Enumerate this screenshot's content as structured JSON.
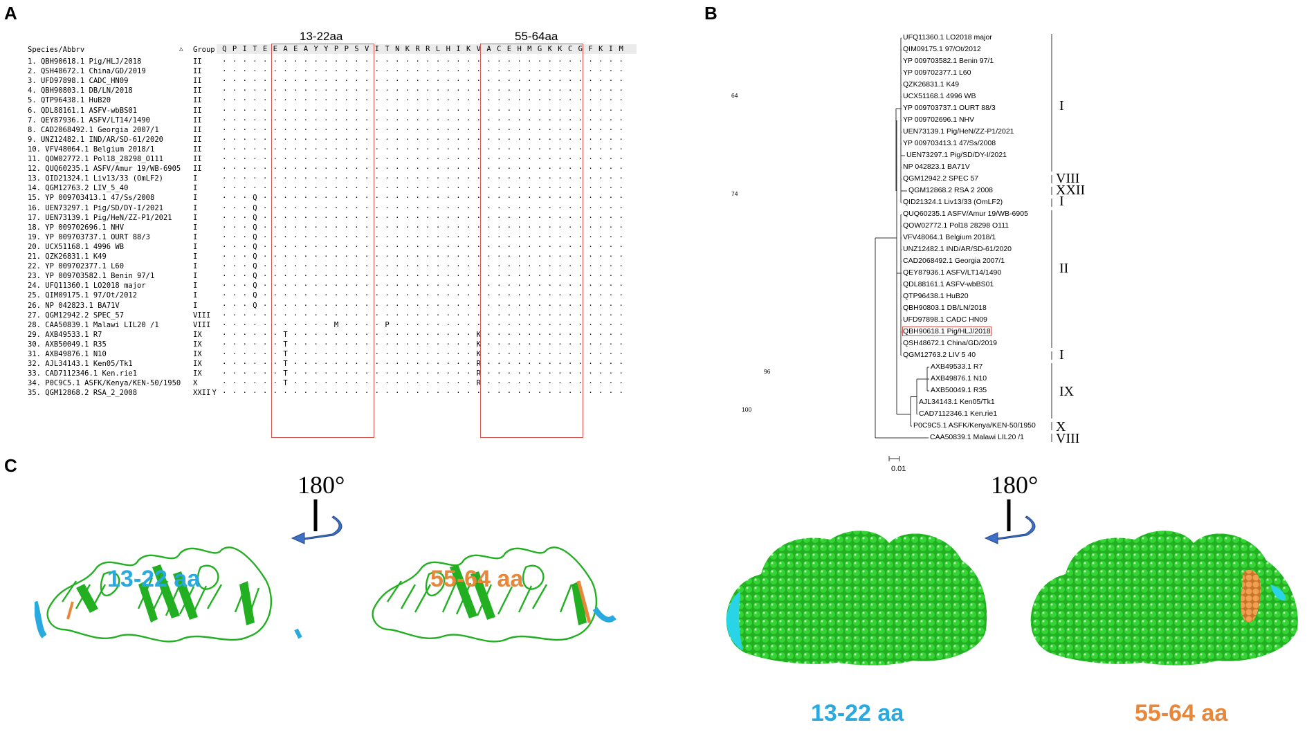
{
  "panels": {
    "a": "A",
    "b": "B",
    "c": "C"
  },
  "alignment": {
    "header_species": "Species/Abbrv",
    "header_sort": "△",
    "header_group": "Group",
    "region1_label": "13-22aa",
    "region2_label": "55-64aa",
    "residues": [
      "Q",
      "P",
      "I",
      "T",
      "E",
      "E",
      "A",
      "E",
      "A",
      "Y",
      "Y",
      "P",
      "P",
      "S",
      "V",
      "I",
      "T",
      "N",
      "K",
      "R",
      "R",
      "L",
      "H",
      "I",
      "K",
      "V",
      "A",
      "C",
      "E",
      "H",
      "M",
      "G",
      "K",
      "K",
      "C",
      "G",
      "F",
      "K",
      "I",
      "M"
    ],
    "rows": [
      {
        "label": "1. QBH90618.1 Pig/HLJ/2018",
        "group": "II",
        "muts": {}
      },
      {
        "label": "2. QSH48672.1 China/GD/2019",
        "group": "II",
        "muts": {}
      },
      {
        "label": "3. UFD97898.1 CADC_HN09",
        "group": "II",
        "muts": {}
      },
      {
        "label": "4. QBH90803.1 DB/LN/2018",
        "group": "II",
        "muts": {}
      },
      {
        "label": "5. QTP96438.1 HuB20",
        "group": "II",
        "muts": {}
      },
      {
        "label": "6. QDL88161.1 ASFV-wbBS01",
        "group": "II",
        "muts": {}
      },
      {
        "label": "7. QEY87936.1 ASFV/LT14/1490",
        "group": "II",
        "muts": {}
      },
      {
        "label": "8. CAD2068492.1 Georgia 2007/1",
        "group": "II",
        "muts": {}
      },
      {
        "label": "9. UNZ12482.1 IND/AR/SD-61/2020",
        "group": "II",
        "muts": {}
      },
      {
        "label": "10. VFV48064.1 Belgium 2018/1",
        "group": "II",
        "muts": {}
      },
      {
        "label": "11. QOW02772.1 Pol18_28298_O111",
        "group": "II",
        "muts": {}
      },
      {
        "label": "12. QUQ60235.1 ASFV/Amur 19/WB-6905",
        "group": "II",
        "muts": {}
      },
      {
        "label": "13. QID21324.1 Liv13/33 (OmLF2)",
        "group": "I",
        "muts": {}
      },
      {
        "label": "14. QGM12763.2 LIV_5_40",
        "group": "I",
        "muts": {}
      },
      {
        "label": "15. YP 009703413.1 47/Ss/2008",
        "group": "I",
        "muts": {
          "3": "Q"
        }
      },
      {
        "label": "16. UEN73297.1 Pig/SD/DY-I/2021",
        "group": "I",
        "muts": {
          "3": "Q"
        }
      },
      {
        "label": "17. UEN73139.1 Pig/HeN/ZZ-P1/2021",
        "group": "I",
        "muts": {
          "3": "Q"
        }
      },
      {
        "label": "18. YP 009702696.1 NHV",
        "group": "I",
        "muts": {
          "3": "Q"
        }
      },
      {
        "label": "19. YP 009703737.1 OURT 88/3",
        "group": "I",
        "muts": {
          "3": "Q"
        }
      },
      {
        "label": "20. UCX51168.1 4996 WB",
        "group": "I",
        "muts": {
          "3": "Q"
        }
      },
      {
        "label": "21. QZK26831.1 K49",
        "group": "I",
        "muts": {
          "3": "Q"
        }
      },
      {
        "label": "22. YP 009702377.1 L60",
        "group": "I",
        "muts": {
          "3": "Q"
        }
      },
      {
        "label": "23. YP 009703582.1 Benin 97/1",
        "group": "I",
        "muts": {
          "3": "Q"
        }
      },
      {
        "label": "24. UFQ11360.1 LO2018 major",
        "group": "I",
        "muts": {
          "3": "Q"
        }
      },
      {
        "label": "25. QIM09175.1 97/Ot/2012",
        "group": "I",
        "muts": {
          "3": "Q"
        }
      },
      {
        "label": "26. NP 042823.1 BA71V",
        "group": "I",
        "muts": {
          "3": "Q"
        }
      },
      {
        "label": "27. QGM12942.2 SPEC_57",
        "group": "VIII",
        "muts": {}
      },
      {
        "label": "28. CAA50839.1 Malawi LIL20 /1",
        "group": "VIII",
        "muts": {
          "11": "M",
          "16": "P"
        }
      },
      {
        "label": "29. AXB49533.1 R7",
        "group": "IX",
        "muts": {
          "6": "T",
          "25": "K"
        }
      },
      {
        "label": "30. AXB50049.1 R35",
        "group": "IX",
        "muts": {
          "6": "T",
          "25": "K"
        }
      },
      {
        "label": "31. AXB49876.1 N10",
        "group": "IX",
        "muts": {
          "6": "T",
          "25": "K"
        }
      },
      {
        "label": "32. AJL34143.1 Ken05/Tk1",
        "group": "IX",
        "muts": {
          "6": "T",
          "25": "R"
        }
      },
      {
        "label": "33. CAD7112346.1 Ken.rie1",
        "group": "IX",
        "muts": {
          "6": "T",
          "25": "R"
        }
      },
      {
        "label": "34. P0C9C5.1 ASFK/Kenya/KEN-50/1950",
        "group": "X",
        "muts": {
          "6": "T",
          "25": "R"
        }
      },
      {
        "label": "35. QGM12868.2 RSA_2_2008",
        "group": "XXII",
        "muts": {
          "-1": "Y"
        }
      }
    ]
  },
  "tree": {
    "leaves": [
      "UFQ11360.1 LO2018 major",
      "QIM09175.1 97/Ot/2012",
      "YP 009703582.1 Benin 97/1",
      "YP 009702377.1 L60",
      "QZK26831.1 K49",
      "UCX51168.1 4996 WB",
      "YP 009703737.1 OURT 88/3",
      "YP 009702696.1 NHV",
      "UEN73139.1 Pig/HeN/ZZ-P1/2021",
      "YP 009703413.1 47/Ss/2008",
      "UEN73297.1 Pig/SD/DY-I/2021",
      "NP 042823.1 BA71V",
      "QGM12942.2 SPEC 57",
      "QGM12868.2 RSA 2 2008",
      "QID21324.1 Liv13/33 (OmLF2)",
      "QUQ60235.1 ASFV/Amur 19/WB-6905",
      "QOW02772.1 Pol18 28298 O111",
      "VFV48064.1 Belgium 2018/1",
      "UNZ12482.1 IND/AR/SD-61/2020",
      "CAD2068492.1 Georgia 2007/1",
      "QEY87936.1 ASFV/LT14/1490",
      "QDL88161.1 ASFV-wbBS01",
      "QTP96438.1 HuB20",
      "QBH90803.1 DB/LN/2018",
      "UFD97898.1 CADC HN09",
      "QBH90618.1 Pig/HLJ/2018",
      "QSH48672.1 China/GD/2019",
      "QGM12763.2 LIV 5 40",
      "AXB49533.1 R7",
      "AXB49876.1 N10",
      "AXB50049.1 R35",
      "AJL34143.1 Ken05/Tk1",
      "CAD7112346.1 Ken.rie1",
      "P0C9C5.1 ASFK/Kenya/KEN-50/1950",
      "CAA50839.1 Malawi LIL20 /1"
    ],
    "clades": {
      "I_top": "I",
      "VIII": "VIII",
      "XXII": "XXII",
      "I_mid": "I",
      "II": "II",
      "I_low": "I",
      "IX": "IX",
      "X": "X",
      "VIII_low": "VIII"
    },
    "bootstrap": {
      "b64": "64",
      "b74": "74",
      "b96": "96",
      "b100": "100"
    },
    "scale": "0.01"
  },
  "structure": {
    "rotation": "180°",
    "label_left_1": "13-22 aa",
    "label_left_2": "55-64 aa",
    "label_right_1": "13-22 aa",
    "label_right_2": "55-64 aa"
  },
  "colors": {
    "protein": "#22b022",
    "region1": "#28a9e0",
    "region2": "#e8873a",
    "highlight_box": "#d9534f"
  }
}
